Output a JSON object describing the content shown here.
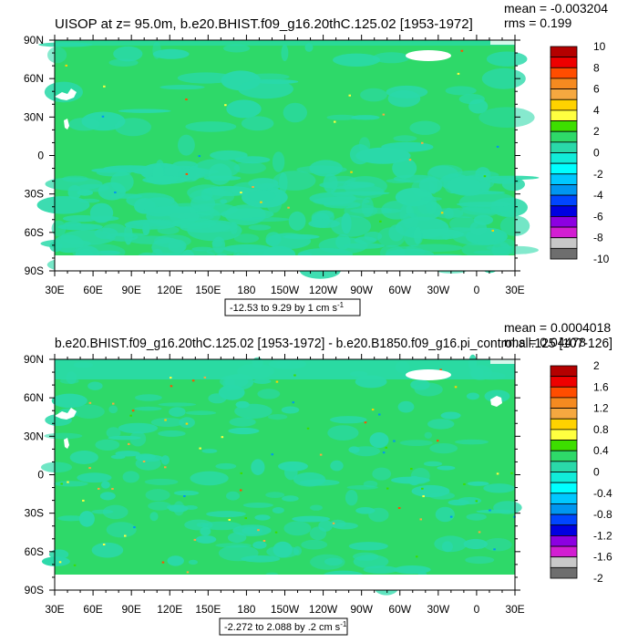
{
  "chart_data": [
    {
      "type": "heatmap",
      "title": "UISOP at z=  95.0m, b.e20.BHIST.f09_g16.20thC.125.02 [1953-1972]",
      "mean_label": "mean = -0.003204",
      "rms_label": "rms = 0.199",
      "range_label": "-12.53 to 9.29 by 1 cm s",
      "range_superscript": "-1",
      "x_ticks": [
        "30E",
        "60E",
        "90E",
        "120E",
        "150E",
        "180",
        "150W",
        "120W",
        "90W",
        "60W",
        "30W",
        "0",
        "30E"
      ],
      "y_ticks": [
        "90N",
        "60N",
        "30N",
        "0",
        "30S",
        "60S",
        "90S"
      ],
      "colorbar_labels": [
        "10",
        "8",
        "6",
        "4",
        "2",
        "0",
        "-2",
        "-4",
        "-6",
        "-8",
        "-10"
      ],
      "colorbar_colors": [
        "#b40000",
        "#ee0000",
        "#ff4d00",
        "#f58a20",
        "#f5a840",
        "#ffd200",
        "#ffff40",
        "#3dde00",
        "#2ed969",
        "#2ad9a9",
        "#11ecd9",
        "#00ffff",
        "#00c8ff",
        "#0096f0",
        "#0046ff",
        "#0000e1",
        "#8c00e1",
        "#d21ed2",
        "#c8c8c8",
        "#6e6e6e"
      ],
      "dominant_color": "#2ed969",
      "secondary_color": "#2ad9a9"
    },
    {
      "type": "heatmap",
      "title": "b.e20.BHIST.f09_g16.20thC.125.02 [1953-1972] - b.e20.B1850.f09_g16.pi_control.all.125 [107-126]",
      "mean_label": "mean = 0.0004018",
      "rms_label": "rms = 0.04478",
      "range_label": "-2.272 to 2.088 by .2 cm s",
      "range_superscript": "-1",
      "x_ticks": [
        "30E",
        "60E",
        "90E",
        "120E",
        "150E",
        "180",
        "150W",
        "120W",
        "90W",
        "60W",
        "30W",
        "0",
        "30E"
      ],
      "y_ticks": [
        "90N",
        "60N",
        "30N",
        "0",
        "30S",
        "60S",
        "90S"
      ],
      "colorbar_labels": [
        "2",
        "1.6",
        "1.2",
        "0.8",
        "0.4",
        "0",
        "-0.4",
        "-0.8",
        "-1.2",
        "-1.6",
        "-2"
      ],
      "colorbar_colors": [
        "#b40000",
        "#ee0000",
        "#ff4d00",
        "#f58a20",
        "#f5a840",
        "#ffd200",
        "#ffff40",
        "#3dde00",
        "#2ed969",
        "#2ad9a9",
        "#11ecd9",
        "#00ffff",
        "#00c8ff",
        "#0096f0",
        "#0046ff",
        "#0000e1",
        "#8c00e1",
        "#d21ed2",
        "#c8c8c8",
        "#6e6e6e"
      ],
      "dominant_color": "#2ed969",
      "secondary_color": "#2ad9a9"
    }
  ]
}
